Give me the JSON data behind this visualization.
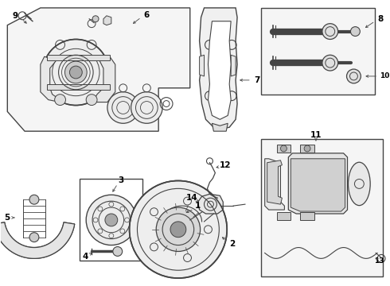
{
  "background_color": "#ffffff",
  "line_color": "#444444",
  "fig_width": 4.9,
  "fig_height": 3.6,
  "dpi": 100
}
